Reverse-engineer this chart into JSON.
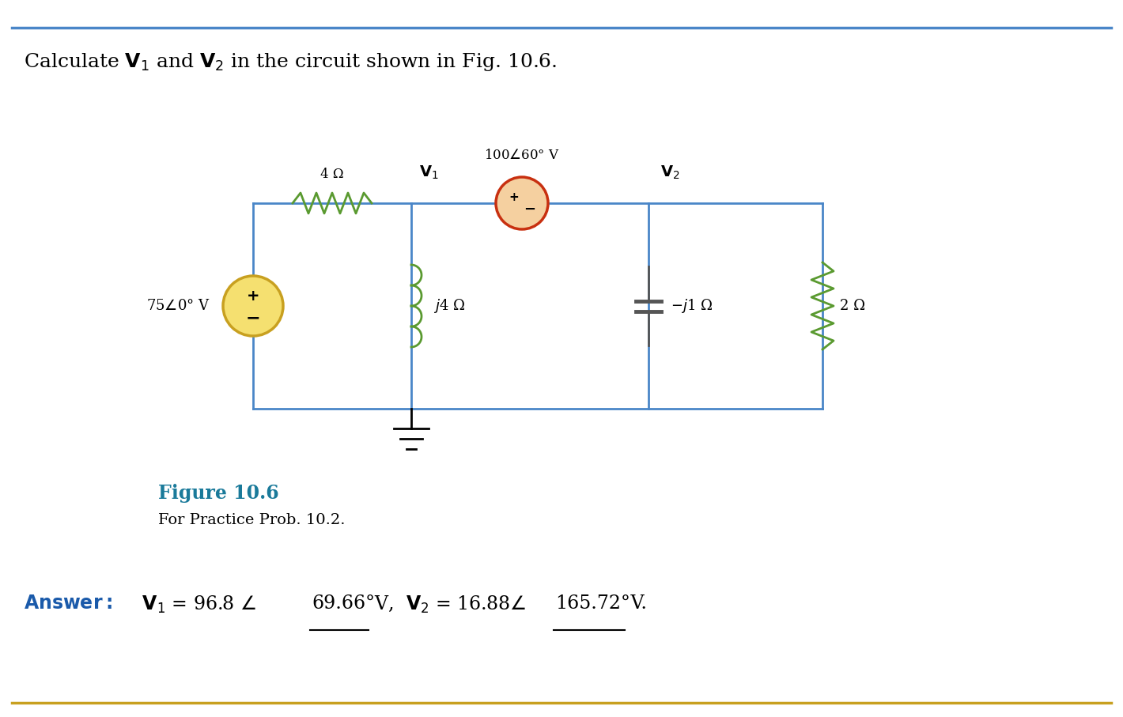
{
  "title": "Calculate $\\mathbf{V}_1$ and $\\mathbf{V}_2$ in the circuit shown in Fig. 10.6.",
  "figure_label": "Figure 10.6",
  "figure_sublabel": "For Practice Prob. 10.2.",
  "answer_text": "Answer:",
  "answer_body": " $\\mathbf{V}_1$ = 96.8 $\\underline{/69.66°}$ V,  $\\mathbf{V}_2$ = 16.88$\\underline{/165.72°}$ V.",
  "bg_color": "#ffffff",
  "circuit_color": "#4a86c8",
  "source_color_75": "#c8a020",
  "source_color_100": "#c83010",
  "resistor_color": "#5a9a30",
  "cap_color": "#5a5a5a",
  "top_line_color": "#4a86c8",
  "bottom_line_color": "#c8a020",
  "answer_color": "#1a5aaa",
  "figure_label_color": "#1a7a9a"
}
